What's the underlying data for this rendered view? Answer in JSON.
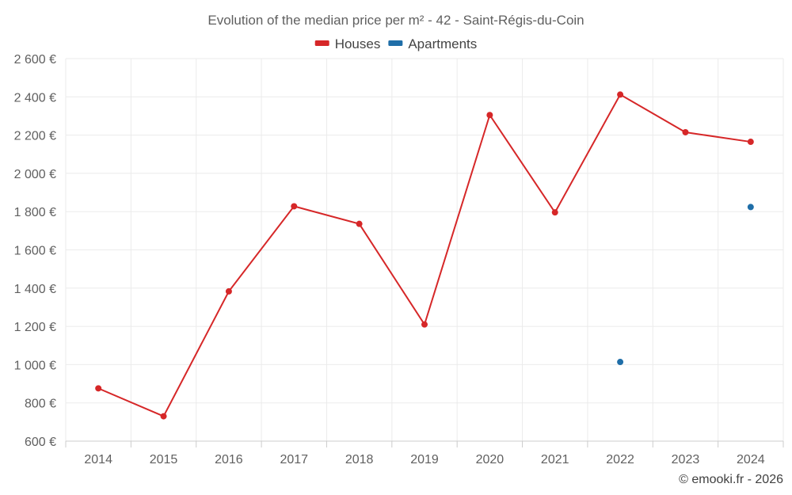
{
  "chart_data": {
    "type": "line",
    "title": "Evolution of the median price per m² - 42 - Saint-Régis-du-Coin",
    "categories": [
      "2014",
      "2015",
      "2016",
      "2017",
      "2018",
      "2019",
      "2020",
      "2021",
      "2022",
      "2023",
      "2024"
    ],
    "series": [
      {
        "name": "Houses",
        "color": "#d62728",
        "values": [
          876,
          730,
          1383,
          1828,
          1736,
          1210,
          2305,
          1796,
          2412,
          2215,
          2165
        ]
      },
      {
        "name": "Apartments",
        "color": "#1f6ea8",
        "values": [
          null,
          null,
          null,
          null,
          null,
          null,
          null,
          null,
          1014,
          null,
          1824
        ]
      }
    ],
    "ylim": [
      600,
      2600
    ],
    "yticks": [
      600,
      800,
      1000,
      1200,
      1400,
      1600,
      1800,
      2000,
      2200,
      2400,
      2600
    ],
    "ytick_labels": [
      "600 €",
      "800 €",
      "1 000 €",
      "1 200 €",
      "1 400 €",
      "1 600 €",
      "1 800 €",
      "2 000 €",
      "2 200 €",
      "2 400 €",
      "2 600 €"
    ],
    "grid": true,
    "legend_position": "top-center"
  },
  "credit": "© emooki.fr - 2026"
}
